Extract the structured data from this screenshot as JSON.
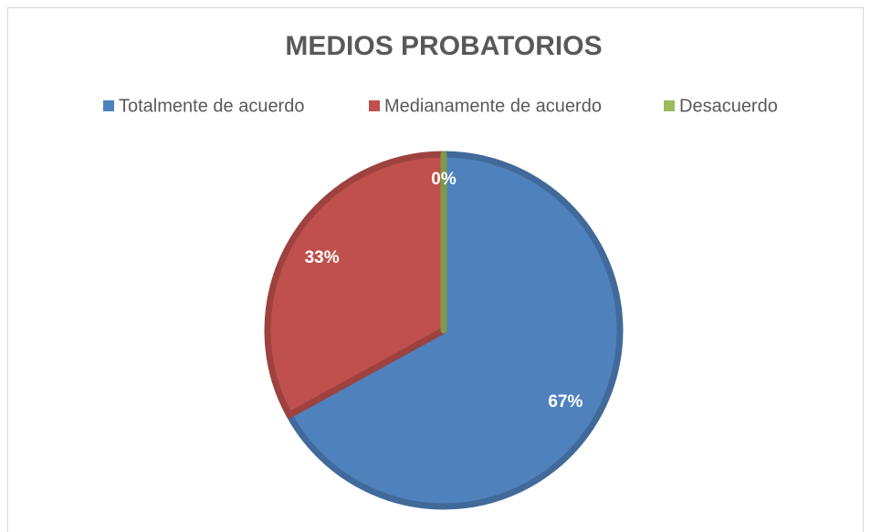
{
  "chart_data": {
    "type": "pie",
    "title": "MEDIOS PROBATORIOS",
    "categories": [
      "Totalmente de acuerdo",
      "Medianamente de acuerdo",
      "Desacuerdo"
    ],
    "values": [
      67,
      33,
      0
    ],
    "value_labels": [
      "67%",
      "33%",
      "0%"
    ],
    "colors": [
      "#4f81bd",
      "#c0504d",
      "#9bbb59"
    ],
    "legend": "top"
  }
}
